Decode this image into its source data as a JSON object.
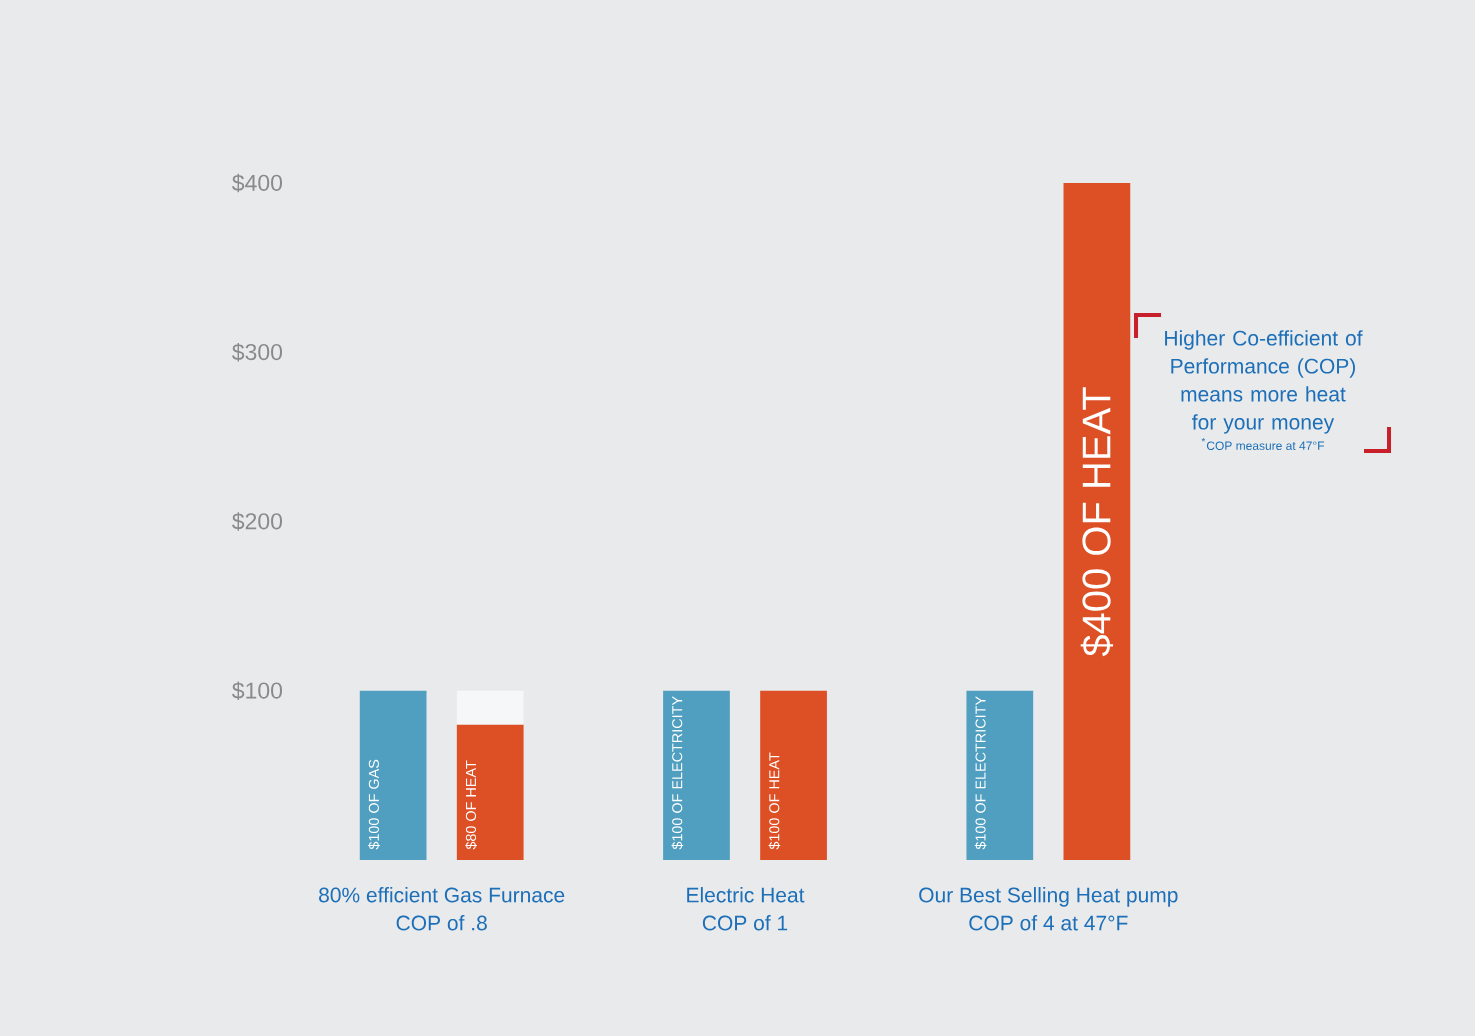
{
  "chart_data": {
    "type": "bar",
    "categories": [
      "80% efficient Gas Furnace\nCOP of .8",
      "Electric Heat\nCOP of 1",
      "Our Best Selling Heat pump\nCOP of 4 at 47°F"
    ],
    "series": [
      {
        "color": "#519fc0",
        "values": [
          100,
          100,
          100
        ],
        "value_labels": [
          "$100 OF GAS",
          "$100 OF ELECTRICITY",
          "$100 OF ELECTRICITY"
        ]
      },
      {
        "color": "#dd4f25",
        "values": [
          80,
          100,
          400
        ],
        "value_labels": [
          "$80 OF HEAT",
          "$100 OF HEAT",
          "$400 OF HEAT"
        ]
      },
      {
        "color": "#f6f7f8",
        "values": [
          20,
          null,
          null
        ],
        "base": [
          80,
          null,
          null
        ]
      }
    ],
    "ylim": [
      0,
      400
    ],
    "yticks": [
      {
        "value": 100,
        "label": "$100"
      },
      {
        "value": 200,
        "label": "$200"
      },
      {
        "value": 300,
        "label": "$300"
      },
      {
        "value": 400,
        "label": "$400"
      }
    ],
    "annotations": [
      "Higher Co-efficient of\nPerformance (COP)\nmeans more heat\nfor your money",
      "$^{*}$COP measure at 47°F"
    ]
  }
}
